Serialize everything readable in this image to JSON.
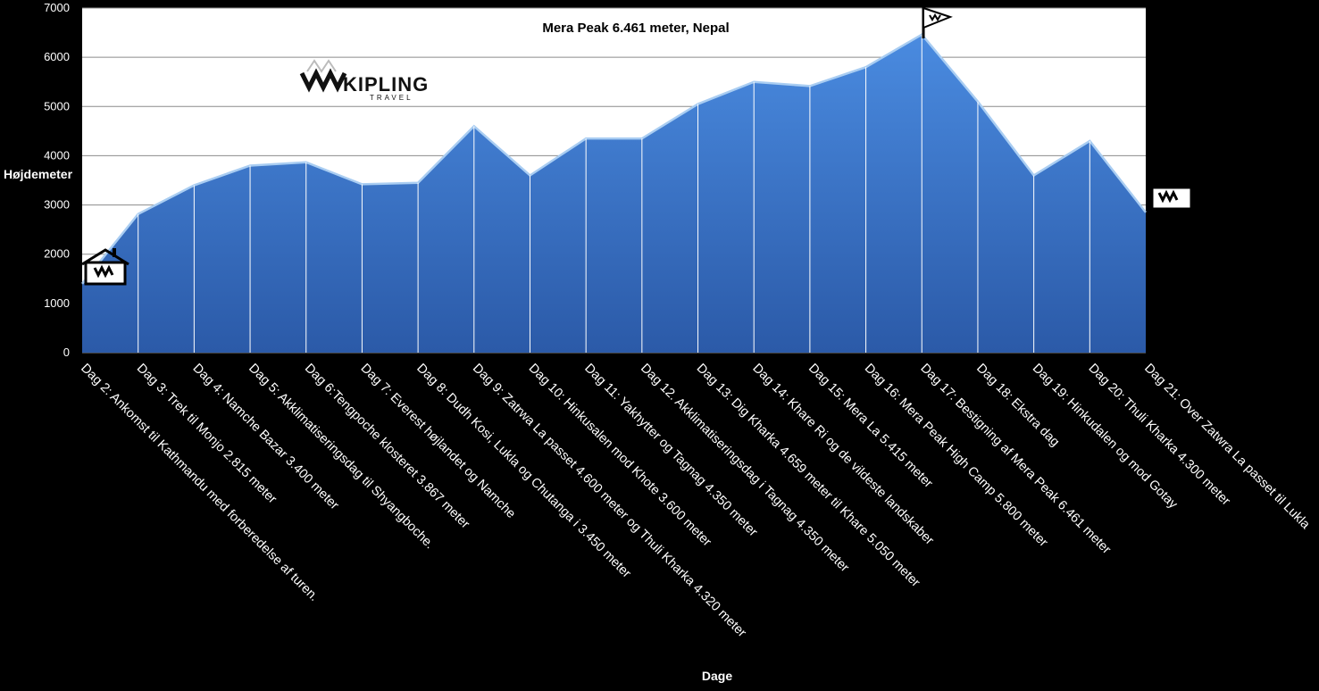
{
  "chart_data": {
    "type": "area",
    "title": "Mera Peak 6.461 meter, Nepal",
    "xlabel": "Dage",
    "ylabel": "Højdemeter",
    "ylim": [
      0,
      7000
    ],
    "yticks": [
      0,
      1000,
      2000,
      3000,
      4000,
      5000,
      6000,
      7000
    ],
    "grid": true,
    "legend": "none",
    "colors": {
      "area_top": "#4a8be0",
      "area_bottom": "#2b5aa8",
      "plot_bg": "#ffffff",
      "page_bg": "#000000"
    },
    "categories": [
      "Dag 2: Ankomst til Kathmandu med forberedelse af turen.",
      "Dag 3: Trek til Monjo 2.815 meter",
      "Dag 4: Namche Bazar 3.400 meter",
      "Dag 5: Akklimatiseringsdag til Shyangboche.",
      "Dag 6:Tengpoche klosteret 3.867 meter",
      "Dag 7: Everest højlandet og Namche",
      "Dag 8: Dudh Kosi, Lukla og Chutanga i 3.450 meter",
      "Dag 9: Zatrwa La passet 4.600 meter og Thuli Kharka 4.320 meter",
      "Dag 10: Hinkusalen mod Khote 3.600 meter",
      "Dag 11: Yakhytter og Tagnag 4.350 meter",
      "Dag 12. Akklimatiseringsdag i Tagnag 4.350 meter",
      "Dag 13: Dig Kharka 4.659 meter til Khare 5.050 meter",
      "Dag 14: Khare Ri og de vildeste landskaber",
      "Dag 15: Mera La 5.415 meter",
      "Dag 16: Mera Peak High Camp 5.800 meter",
      "Dag 17: Bestigning af Mera Peak 6.461 meter",
      "Dag 18: Ekstra dag",
      "Dag 19: Hinkudalen og mod Gotay",
      "Dag 20: Thuli Kharka 4.300 meter",
      "Dag 21: Over Zatwra La passet til  Lukla"
    ],
    "values": [
      1400,
      2815,
      3400,
      3800,
      3867,
      3420,
      3450,
      4600,
      3600,
      4350,
      4350,
      5050,
      5500,
      5415,
      5800,
      6461,
      5100,
      3600,
      4300,
      2850
    ]
  },
  "icons": {
    "start": "house-icon",
    "end": "house-icon",
    "summit": "flag-icon",
    "logo": "kipling-logo-icon"
  },
  "logo": {
    "name": "KIPLING",
    "sub": "TRAVEL"
  }
}
